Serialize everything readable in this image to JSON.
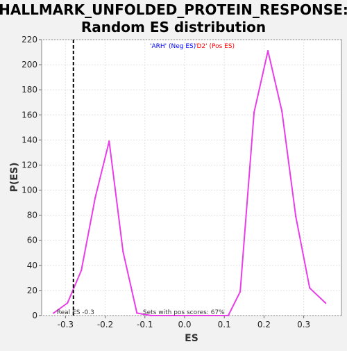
{
  "chart_data": {
    "type": "line",
    "title_line1": "HALLMARK_UNFOLDED_PROTEIN_RESPONSE:",
    "title_line2": "Random ES distribution",
    "xlabel": "ES",
    "ylabel": "P(ES)",
    "xlim": [
      -0.36,
      0.395
    ],
    "ylim": [
      0,
      220
    ],
    "xticks": [
      "-0.3",
      "-0.2",
      "-0.1",
      "0.0",
      "0.1",
      "0.2",
      "0.3"
    ],
    "xtick_values": [
      -0.3,
      -0.2,
      -0.1,
      0.0,
      0.1,
      0.2,
      0.3
    ],
    "yticks": [
      "0",
      "20",
      "40",
      "60",
      "80",
      "100",
      "120",
      "140",
      "160",
      "180",
      "200",
      "220"
    ],
    "ytick_values": [
      0,
      20,
      40,
      60,
      80,
      100,
      120,
      140,
      160,
      180,
      200,
      220
    ],
    "grid": true,
    "legend_neg_label": "'ARH' (Neg ES)",
    "legend_pos_label": "'D2' (Pos ES)",
    "legend_neg_color": "#0000ff",
    "legend_pos_color": "#ff0000",
    "real_es_value": -0.28,
    "real_es_label": "Real ES -0.3",
    "annotation": "Sets with pos scores: 67%",
    "series": [
      {
        "color": "#e83ee8",
        "x": [
          -0.33,
          -0.295,
          -0.26,
          -0.225,
          -0.19,
          -0.155,
          -0.12,
          -0.085,
          0.11,
          0.14,
          0.175,
          0.21,
          0.245,
          0.28,
          0.315,
          0.355
        ],
        "y": [
          2,
          10,
          36,
          94,
          139,
          51,
          2,
          0,
          0,
          19,
          162,
          211,
          163,
          79,
          22,
          10
        ]
      }
    ]
  }
}
